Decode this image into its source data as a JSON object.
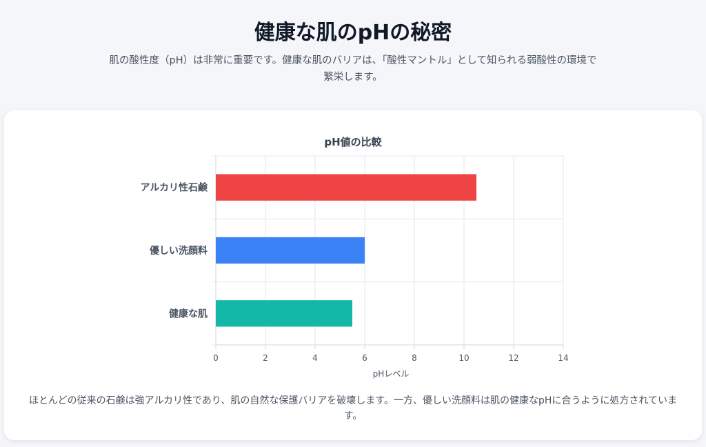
{
  "header": {
    "title": "健康な肌のpHの秘密",
    "intro": "肌の酸性度（pH）は非常に重要です。健康な肌のバリアは、「酸性マントル」として知られる弱酸性の環境で繁栄します。"
  },
  "chart_data": {
    "type": "bar",
    "orientation": "horizontal",
    "title": "pH値の比較",
    "xlabel": "pHレベル",
    "ylabel": "",
    "categories": [
      "アルカリ性石鹸",
      "優しい洗顔料",
      "健康な肌"
    ],
    "values": [
      10.5,
      6,
      5.5
    ],
    "colors": [
      "#ef4444",
      "#3b82f6",
      "#14b8a6"
    ],
    "xlim": [
      0,
      14
    ],
    "xticks": [
      0,
      2,
      4,
      6,
      8,
      10,
      12,
      14
    ],
    "grid": true,
    "legend": "none"
  },
  "footnote": "ほとんどの従来の石鹸は強アルカリ性であり、肌の自然な保護バリアを破壊します。一方、優しい洗顔料は肌の健康なpHに合うように処方されています。"
}
